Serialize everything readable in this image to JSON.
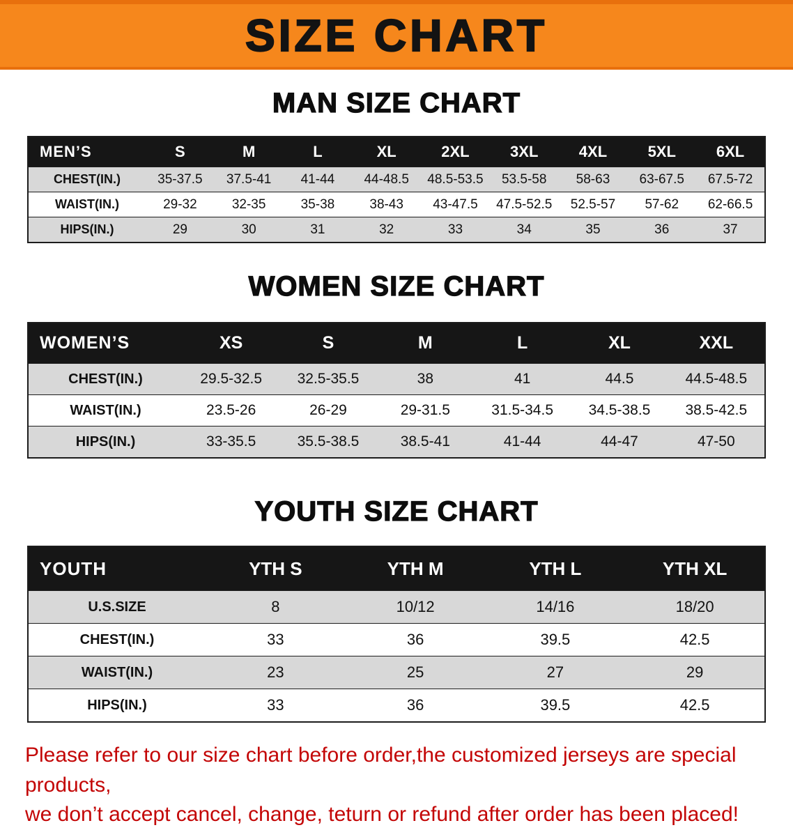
{
  "banner": {
    "title": "SIZE CHART"
  },
  "colors": {
    "banner_bg": "#f6871c",
    "banner_edge": "#e8700d",
    "table_header_bg": "#161616",
    "table_header_text": "#ffffff",
    "row_shade": "#d8d8d8",
    "row_plain": "#ffffff",
    "notice_text": "#c30505",
    "heading_text": "#0d0d0d"
  },
  "tables": [
    {
      "id": "men",
      "heading": "MAN SIZE CHART",
      "header_label": "MEN’S",
      "columns": [
        "S",
        "M",
        "L",
        "XL",
        "2XL",
        "3XL",
        "4XL",
        "5XL",
        "6XL"
      ],
      "rows": [
        {
          "label": "CHEST(IN.)",
          "values": [
            "35-37.5",
            "37.5-41",
            "41-44",
            "44-48.5",
            "48.5-53.5",
            "53.5-58",
            "58-63",
            "63-67.5",
            "67.5-72"
          ]
        },
        {
          "label": "WAIST(IN.)",
          "values": [
            "29-32",
            "32-35",
            "35-38",
            "38-43",
            "43-47.5",
            "47.5-52.5",
            "52.5-57",
            "57-62",
            "62-66.5"
          ]
        },
        {
          "label": "HIPS(IN.)",
          "values": [
            "29",
            "30",
            "31",
            "32",
            "33",
            "34",
            "35",
            "36",
            "37"
          ]
        }
      ]
    },
    {
      "id": "women",
      "heading": "WOMEN SIZE CHART",
      "header_label": "WOMEN’S",
      "columns": [
        "XS",
        "S",
        "M",
        "L",
        "XL",
        "XXL"
      ],
      "rows": [
        {
          "label": "CHEST(IN.)",
          "values": [
            "29.5-32.5",
            "32.5-35.5",
            "38",
            "41",
            "44.5",
            "44.5-48.5"
          ]
        },
        {
          "label": "WAIST(IN.)",
          "values": [
            "23.5-26",
            "26-29",
            "29-31.5",
            "31.5-34.5",
            "34.5-38.5",
            "38.5-42.5"
          ]
        },
        {
          "label": "HIPS(IN.)",
          "values": [
            "33-35.5",
            "35.5-38.5",
            "38.5-41",
            "41-44",
            "44-47",
            "47-50"
          ]
        }
      ]
    },
    {
      "id": "youth",
      "heading": "YOUTH SIZE CHART",
      "header_label": "YOUTH",
      "columns": [
        "YTH S",
        "YTH M",
        "YTH L",
        "YTH XL"
      ],
      "rows": [
        {
          "label": "U.S.SIZE",
          "values": [
            "8",
            "10/12",
            "14/16",
            "18/20"
          ]
        },
        {
          "label": "CHEST(IN.)",
          "values": [
            "33",
            "36",
            "39.5",
            "42.5"
          ]
        },
        {
          "label": "WAIST(IN.)",
          "values": [
            "23",
            "25",
            "27",
            "29"
          ]
        },
        {
          "label": "HIPS(IN.)",
          "values": [
            "33",
            "36",
            "39.5",
            "42.5"
          ]
        }
      ]
    }
  ],
  "notice": {
    "line1": "Please refer to our size chart before order,the customized jerseys are special products,",
    "line2": "we don’t accept cancel, change, teturn or refund after order has been placed!"
  }
}
